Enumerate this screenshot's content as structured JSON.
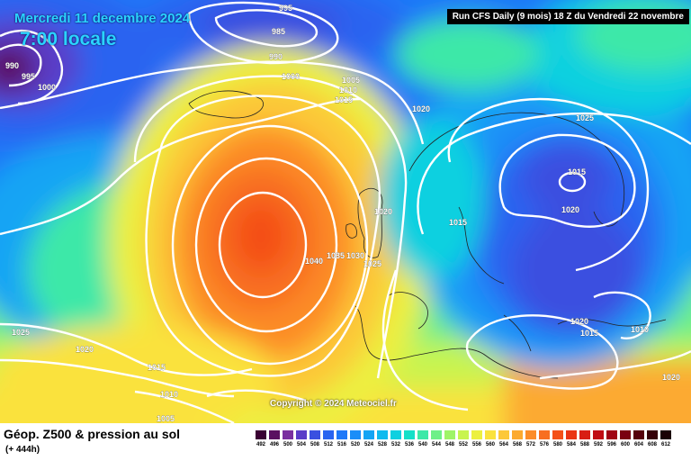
{
  "header": {
    "date": "Mercredi 11 decembre 2024",
    "time": "7:00 locale",
    "run_info": "Run CFS Daily (9 mois) 18 Z du Vendredi 22 novembre"
  },
  "copyright": "Copyright © 2024 Meteociel.fr",
  "footer": {
    "title": "Géop. Z500 & pression au sol",
    "subtitle": "(+ 444h)"
  },
  "legend": {
    "values": [
      "492",
      "496",
      "500",
      "504",
      "508",
      "512",
      "516",
      "520",
      "524",
      "528",
      "532",
      "536",
      "540",
      "544",
      "548",
      "552",
      "556",
      "560",
      "564",
      "568",
      "572",
      "576",
      "580",
      "584",
      "588",
      "592",
      "596",
      "600",
      "604",
      "608",
      "612"
    ],
    "colors": [
      "#3a0033",
      "#5a1060",
      "#7a30a0",
      "#5a3cc8",
      "#3a50e0",
      "#2a64f0",
      "#1e78f8",
      "#1a8ef8",
      "#14a4f4",
      "#10baee",
      "#0ed0e0",
      "#14e0c8",
      "#3ce8a8",
      "#6ef088",
      "#9ef468",
      "#c8f450",
      "#ecf040",
      "#fae23c",
      "#fcc838",
      "#fcaa30",
      "#fc8c28",
      "#f86e20",
      "#f45018",
      "#ea3414",
      "#d81e14",
      "#c00c14",
      "#a00414",
      "#7a0010",
      "#56000c",
      "#360008",
      "#1a0004"
    ]
  },
  "isobar_labels": [
    {
      "text": "995"
    },
    {
      "text": "985"
    },
    {
      "text": "990"
    },
    {
      "text": "990"
    },
    {
      "text": "995"
    },
    {
      "text": "1000"
    },
    {
      "text": "1000"
    },
    {
      "text": "1005"
    },
    {
      "text": "1010"
    },
    {
      "text": "1015"
    },
    {
      "text": "1020"
    },
    {
      "text": "1025"
    },
    {
      "text": "1015"
    },
    {
      "text": "1020"
    },
    {
      "text": "1020"
    },
    {
      "text": "1015"
    },
    {
      "text": "1040"
    },
    {
      "text": "1035"
    },
    {
      "text": "1030"
    },
    {
      "text": "1025"
    },
    {
      "text": "1020"
    },
    {
      "text": "1015"
    },
    {
      "text": "1010"
    },
    {
      "text": "1025"
    },
    {
      "text": "1020"
    },
    {
      "text": "1015"
    },
    {
      "text": "1010"
    },
    {
      "text": "1005"
    },
    {
      "text": "1020"
    }
  ],
  "colors": {
    "title": "#2ad4ff",
    "isobar": "#ffffff"
  }
}
